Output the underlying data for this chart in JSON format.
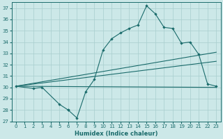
{
  "xlabel": "Humidex (Indice chaleur)",
  "xlim": [
    -0.5,
    23.5
  ],
  "ylim": [
    27,
    37.5
  ],
  "yticks": [
    27,
    28,
    29,
    30,
    31,
    32,
    33,
    34,
    35,
    36,
    37
  ],
  "xticks": [
    0,
    1,
    2,
    3,
    4,
    5,
    6,
    7,
    8,
    9,
    10,
    11,
    12,
    13,
    14,
    15,
    16,
    17,
    18,
    19,
    20,
    21,
    22,
    23
  ],
  "bg_color": "#cce8e8",
  "line_color": "#1a6b6b",
  "lines": [
    {
      "x": [
        0,
        2,
        3,
        5,
        6,
        6,
        7,
        8,
        9,
        10,
        11,
        12,
        13,
        14,
        15,
        16,
        17,
        18,
        19,
        20,
        21,
        22,
        23
      ],
      "y": [
        30.1,
        29.9,
        30.0,
        28.5,
        28.0,
        28.0,
        27.3,
        29.6,
        30.7,
        33.3,
        34.3,
        34.8,
        35.2,
        35.5,
        37.2,
        36.5,
        35.3,
        35.2,
        33.9,
        34.0,
        32.9,
        30.3,
        30.1
      ],
      "has_markers": true
    },
    {
      "x": [
        0,
        23
      ],
      "y": [
        30.1,
        33.1
      ],
      "has_markers": false
    },
    {
      "x": [
        0,
        23
      ],
      "y": [
        30.1,
        32.3
      ],
      "has_markers": false
    },
    {
      "x": [
        0,
        23
      ],
      "y": [
        30.1,
        30.0
      ],
      "has_markers": false
    }
  ]
}
